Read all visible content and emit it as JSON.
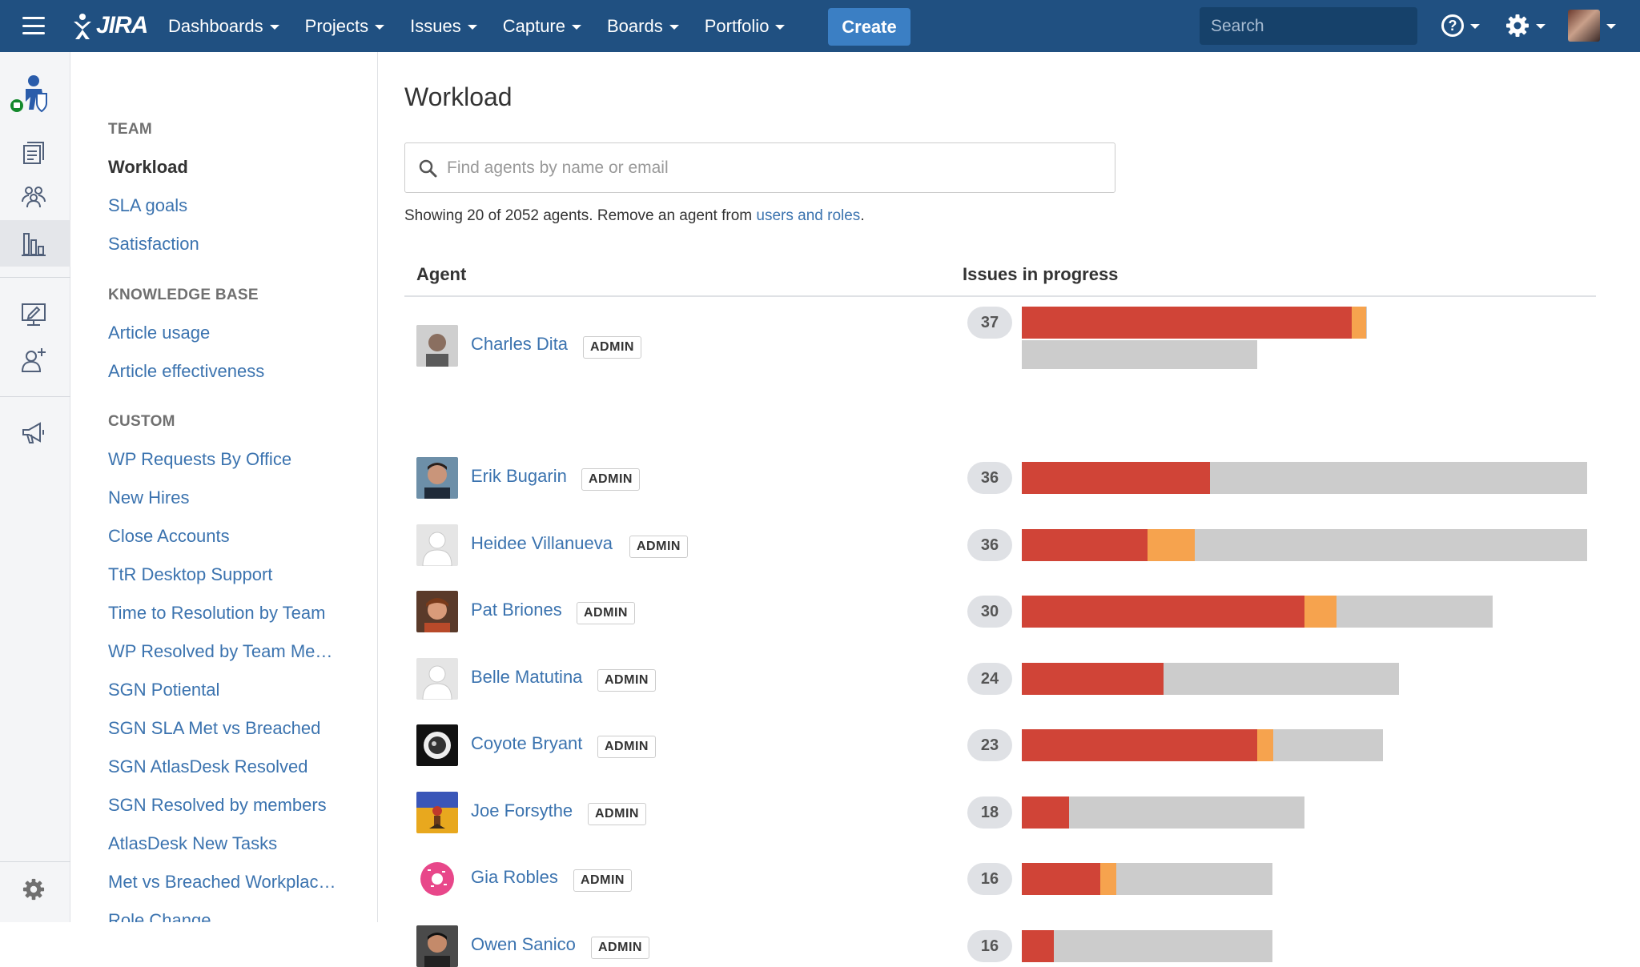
{
  "nav": {
    "logo": "JIRA",
    "menu": [
      "Dashboards",
      "Projects",
      "Issues",
      "Capture",
      "Boards",
      "Portfolio"
    ],
    "create_label": "Create",
    "search_placeholder": "Search",
    "help_label": "?"
  },
  "sidebar": {
    "sections": [
      {
        "heading": "TEAM",
        "items": [
          "Workload",
          "SLA goals",
          "Satisfaction"
        ]
      },
      {
        "heading": "KNOWLEDGE BASE",
        "items": [
          "Article usage",
          "Article effectiveness"
        ]
      },
      {
        "heading": "CUSTOM",
        "items": [
          "WP Requests By Office",
          "New Hires",
          "Close Accounts",
          "TtR Desktop Support",
          "Time to Resolution by Team",
          "WP Resolved by Team Me…",
          "SGN Potiental",
          "SGN SLA Met vs Breached",
          "SGN AtlasDesk Resolved",
          "SGN Resolved by members",
          "AtlasDesk New Tasks",
          "Met vs Breached Workplac…",
          "Role Change"
        ]
      }
    ],
    "current": "Workload"
  },
  "main": {
    "title": "Workload",
    "search_placeholder": "Find agents by name or email",
    "showing_prefix": "Showing 20 of 2052 agents. Remove an agent from ",
    "showing_link": "users and roles",
    "showing_suffix": ".",
    "col_agent": "Agent",
    "col_issues": "Issues in progress",
    "badge": "ADMIN"
  },
  "agents": [
    {
      "name": "Charles Dita",
      "count": "37",
      "red": 0.584,
      "orange": 0.026,
      "second_bar": 0.416
    },
    {
      "name": "Erik Bugarin",
      "count": "36",
      "red": 0.333,
      "orange": 0,
      "total": 1.0
    },
    {
      "name": "Heidee Villanueva",
      "count": "36",
      "red": 0.222,
      "orange": 0.084,
      "total": 1.0
    },
    {
      "name": "Pat Briones",
      "count": "30",
      "red": 0.5,
      "orange": 0.056,
      "total": 0.833
    },
    {
      "name": "Belle Matutina",
      "count": "24",
      "red": 0.25,
      "orange": 0,
      "total": 0.667
    },
    {
      "name": "Coyote Bryant",
      "count": "23",
      "red": 0.416,
      "orange": 0.028,
      "total": 0.639
    },
    {
      "name": "Joe Forsythe",
      "count": "18",
      "red": 0.083,
      "orange": 0,
      "total": 0.5
    },
    {
      "name": "Gia Robles",
      "count": "16",
      "red": 0.139,
      "orange": 0.028,
      "total": 0.444
    },
    {
      "name": "Owen Sanico",
      "count": "16",
      "red": 0.056,
      "orange": 0,
      "total": 0.444
    }
  ]
}
